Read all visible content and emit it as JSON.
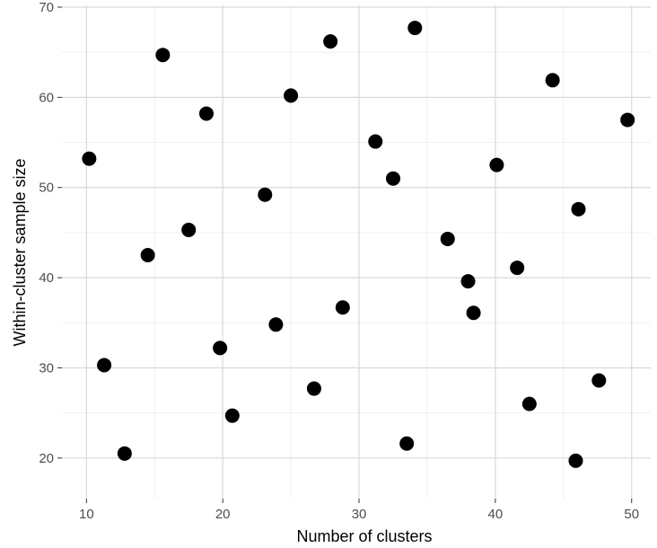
{
  "chart_data": {
    "type": "scatter",
    "title": "",
    "xlabel": "Number of clusters",
    "ylabel": "Within-cluster sample size",
    "xlim": [
      8.2,
      51.4
    ],
    "ylim": [
      15.5,
      70.2
    ],
    "xticks": [
      10,
      20,
      30,
      40,
      50
    ],
    "yticks": [
      20,
      30,
      40,
      50,
      60,
      70
    ],
    "grid": true,
    "legend": "none",
    "colors": {
      "panel_background": "#ffffff",
      "grid_major": "#d9d9d9",
      "grid_minor": "#efefef",
      "point": "#000000",
      "tick_label": "#4d4d4d"
    },
    "points": [
      {
        "x": 10.2,
        "y": 53.2
      },
      {
        "x": 11.3,
        "y": 30.3
      },
      {
        "x": 12.8,
        "y": 20.5
      },
      {
        "x": 14.5,
        "y": 42.5
      },
      {
        "x": 15.6,
        "y": 64.7
      },
      {
        "x": 17.5,
        "y": 45.3
      },
      {
        "x": 18.8,
        "y": 58.2
      },
      {
        "x": 19.8,
        "y": 32.2
      },
      {
        "x": 20.7,
        "y": 24.7
      },
      {
        "x": 23.1,
        "y": 49.2
      },
      {
        "x": 23.9,
        "y": 34.8
      },
      {
        "x": 25.0,
        "y": 60.2
      },
      {
        "x": 26.7,
        "y": 27.7
      },
      {
        "x": 27.9,
        "y": 66.2
      },
      {
        "x": 28.8,
        "y": 36.7
      },
      {
        "x": 31.2,
        "y": 55.1
      },
      {
        "x": 32.5,
        "y": 51.0
      },
      {
        "x": 33.5,
        "y": 21.6
      },
      {
        "x": 34.1,
        "y": 67.7
      },
      {
        "x": 36.5,
        "y": 44.3
      },
      {
        "x": 38.0,
        "y": 39.6
      },
      {
        "x": 38.4,
        "y": 36.1
      },
      {
        "x": 40.1,
        "y": 52.5
      },
      {
        "x": 41.6,
        "y": 41.1
      },
      {
        "x": 42.5,
        "y": 26.0
      },
      {
        "x": 44.2,
        "y": 61.9
      },
      {
        "x": 45.9,
        "y": 19.7
      },
      {
        "x": 46.1,
        "y": 47.6
      },
      {
        "x": 47.6,
        "y": 28.6
      },
      {
        "x": 49.7,
        "y": 57.5
      }
    ]
  }
}
